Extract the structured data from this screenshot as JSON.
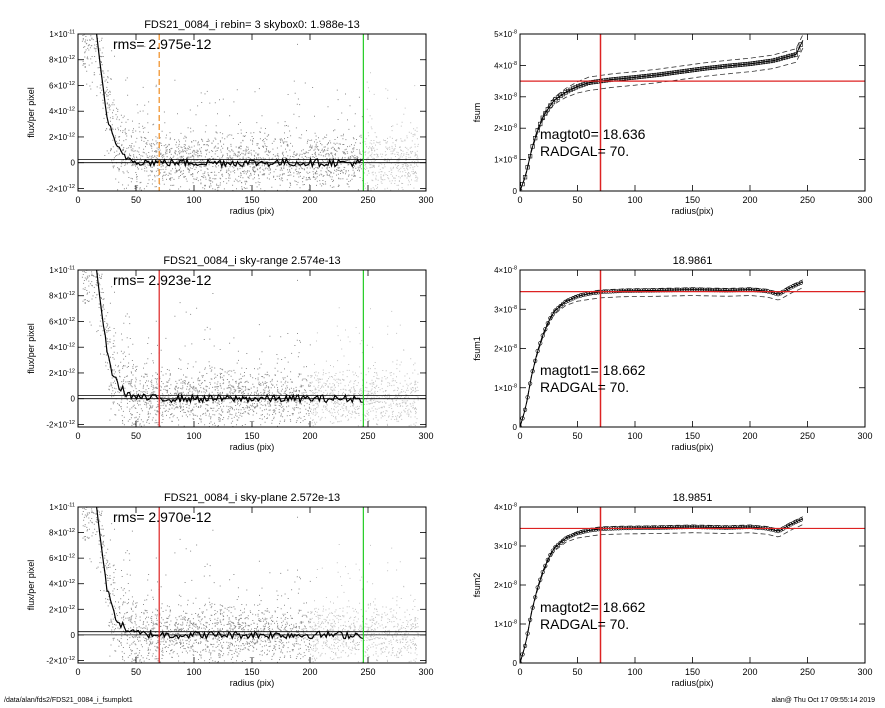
{
  "footer": {
    "left": "/data/alan/fds2/FDS21_0084_i_fsumplot1",
    "right": "alan@  Thu Oct 17 09:55:14 2019"
  },
  "colors": {
    "green": "#22cc22",
    "red": "#dd2222",
    "orange": "#f08c20",
    "scatter": "#8a8a8a",
    "scatter_light": "#c4c4c4"
  },
  "chart_data": [
    {
      "type": "scatter",
      "title": "FDS21_0084_i rebin= 3    skybox0:  1.988e-13",
      "xlabel": "radius (pix)",
      "ylabel": "flux/per pixel",
      "xlim": [
        0,
        300
      ],
      "ylim": [
        -2.2e-12,
        1e-11
      ],
      "xticks": [
        0,
        50,
        100,
        150,
        200,
        250,
        300
      ],
      "xtick_labels": [
        "0",
        "50",
        "100",
        "150",
        "200",
        "250",
        "300"
      ],
      "yticks": [
        1e-11,
        8e-12,
        6e-12,
        4e-12,
        2e-12,
        0,
        -2e-12
      ],
      "ytick_labels": [
        {
          "m": "1×10",
          "e": "-11"
        },
        {
          "m": "8×10",
          "e": "-12"
        },
        {
          "m": "6×10",
          "e": "-12"
        },
        {
          "m": "4×10",
          "e": "-12"
        },
        {
          "m": "2×10",
          "e": "-12"
        },
        {
          "m": "0",
          "e": ""
        },
        {
          "m": "-2×10",
          "e": "-12"
        }
      ],
      "annotation": "rms= 2.975e-12",
      "vlines": [
        {
          "x": 70,
          "color": "orange",
          "style": "dashed"
        },
        {
          "x": 246,
          "color": "green",
          "style": "solid"
        }
      ],
      "hlines": [
        0,
        2.5e-13
      ],
      "profile": [
        [
          16,
          1e-11
        ],
        [
          20,
          7e-12
        ],
        [
          25,
          3.6e-12
        ],
        [
          30,
          1.9e-12
        ],
        [
          35,
          1e-12
        ],
        [
          40,
          5.5e-13
        ],
        [
          45,
          2.5e-13
        ],
        [
          50,
          1.3e-13
        ],
        [
          60,
          4e-14
        ],
        [
          80,
          1e-14
        ],
        [
          120,
          0
        ],
        [
          200,
          0
        ],
        [
          246,
          0
        ]
      ],
      "grey_region": null
    },
    {
      "type": "line",
      "title": "",
      "xlabel": "radius(pix)",
      "ylabel": "fsum",
      "xlim": [
        0,
        300
      ],
      "ylim": [
        0,
        5e-08
      ],
      "xticks": [
        0,
        50,
        100,
        150,
        200,
        250,
        300
      ],
      "xtick_labels": [
        "0",
        "50",
        "100",
        "150",
        "200",
        "250",
        "300"
      ],
      "yticks": [
        5e-08,
        4e-08,
        3e-08,
        2e-08,
        1e-08,
        0
      ],
      "ytick_labels": [
        {
          "m": "5×10",
          "e": "-8"
        },
        {
          "m": "4×10",
          "e": "-8"
        },
        {
          "m": "3×10",
          "e": "-8"
        },
        {
          "m": "2×10",
          "e": "-8"
        },
        {
          "m": "1×10",
          "e": "-8"
        },
        {
          "m": "0",
          "e": ""
        }
      ],
      "annotation_lines": [
        "magtot0=  18.636",
        "RADGAL=      70."
      ],
      "vline": 70,
      "hline": 3.5e-08,
      "curve": [
        [
          0,
          0
        ],
        [
          5,
          5e-09
        ],
        [
          10,
          1.3e-08
        ],
        [
          15,
          1.9e-08
        ],
        [
          20,
          2.35e-08
        ],
        [
          25,
          2.65e-08
        ],
        [
          30,
          2.9e-08
        ],
        [
          40,
          3.15e-08
        ],
        [
          50,
          3.33e-08
        ],
        [
          60,
          3.45e-08
        ],
        [
          70,
          3.5e-08
        ],
        [
          80,
          3.55e-08
        ],
        [
          100,
          3.62e-08
        ],
        [
          120,
          3.7e-08
        ],
        [
          140,
          3.8e-08
        ],
        [
          160,
          3.9e-08
        ],
        [
          180,
          3.98e-08
        ],
        [
          200,
          4.05e-08
        ],
        [
          220,
          4.15e-08
        ],
        [
          240,
          4.35e-08
        ],
        [
          246,
          4.8e-08
        ]
      ],
      "curve_lower_offset": -2.5e-09,
      "curve_upper_offset": 1.8e-09,
      "marker": "square"
    },
    {
      "type": "scatter",
      "title": "FDS21_0084_i sky-range  2.574e-13",
      "xlabel": "radius (pix)",
      "ylabel": "flux/per pixel",
      "xlim": [
        0,
        300
      ],
      "ylim": [
        -2.2e-12,
        1e-11
      ],
      "xticks": [
        0,
        50,
        100,
        150,
        200,
        250,
        300
      ],
      "xtick_labels": [
        "0",
        "50",
        "100",
        "150",
        "200",
        "250",
        "300"
      ],
      "yticks": [
        1e-11,
        8e-12,
        6e-12,
        4e-12,
        2e-12,
        0,
        -2e-12
      ],
      "ytick_labels": [
        {
          "m": "1×10",
          "e": "-11"
        },
        {
          "m": "8×10",
          "e": "-12"
        },
        {
          "m": "6×10",
          "e": "-12"
        },
        {
          "m": "4×10",
          "e": "-12"
        },
        {
          "m": "2×10",
          "e": "-12"
        },
        {
          "m": "0",
          "e": ""
        },
        {
          "m": "-2×10",
          "e": "-12"
        }
      ],
      "annotation": "rms= 2.923e-12",
      "vlines": [
        {
          "x": 70,
          "color": "red",
          "style": "solid"
        },
        {
          "x": 246,
          "color": "green",
          "style": "solid"
        }
      ],
      "hlines": [
        0,
        2.5e-13
      ],
      "profile": [
        [
          16,
          1e-11
        ],
        [
          20,
          7e-12
        ],
        [
          25,
          3.6e-12
        ],
        [
          30,
          1.9e-12
        ],
        [
          35,
          1e-12
        ],
        [
          40,
          5.5e-13
        ],
        [
          45,
          2.5e-13
        ],
        [
          50,
          1.3e-13
        ],
        [
          60,
          4e-14
        ],
        [
          80,
          1e-14
        ],
        [
          120,
          0
        ],
        [
          200,
          0
        ],
        [
          246,
          0
        ]
      ],
      "grey_region": [
        200,
        246
      ]
    },
    {
      "type": "line",
      "title": "18.9861",
      "xlabel": "radius(pix)",
      "ylabel": "fsum1",
      "xlim": [
        0,
        300
      ],
      "ylim": [
        0,
        4e-08
      ],
      "xticks": [
        0,
        50,
        100,
        150,
        200,
        250,
        300
      ],
      "xtick_labels": [
        "0",
        "50",
        "100",
        "150",
        "200",
        "250",
        "300"
      ],
      "yticks": [
        4e-08,
        3e-08,
        2e-08,
        1e-08,
        0
      ],
      "ytick_labels": [
        {
          "m": "4×10",
          "e": "-8"
        },
        {
          "m": "3×10",
          "e": "-8"
        },
        {
          "m": "2×10",
          "e": "-8"
        },
        {
          "m": "1×10",
          "e": "-8"
        },
        {
          "m": "0",
          "e": ""
        }
      ],
      "annotation_lines": [
        "magtot1=  18.662",
        "RADGAL=      70."
      ],
      "vline": 70,
      "hline": 3.45e-08,
      "curve": [
        [
          0,
          0
        ],
        [
          5,
          5e-09
        ],
        [
          10,
          1.3e-08
        ],
        [
          15,
          1.9e-08
        ],
        [
          20,
          2.35e-08
        ],
        [
          25,
          2.7e-08
        ],
        [
          30,
          2.95e-08
        ],
        [
          40,
          3.2e-08
        ],
        [
          50,
          3.33e-08
        ],
        [
          60,
          3.4e-08
        ],
        [
          70,
          3.44e-08
        ],
        [
          90,
          3.47e-08
        ],
        [
          120,
          3.48e-08
        ],
        [
          150,
          3.5e-08
        ],
        [
          180,
          3.48e-08
        ],
        [
          200,
          3.5e-08
        ],
        [
          215,
          3.46e-08
        ],
        [
          225,
          3.38e-08
        ],
        [
          235,
          3.55e-08
        ],
        [
          246,
          3.7e-08
        ]
      ],
      "curve_lower_offset": -1.5e-09,
      "curve_upper_offset": 5e-10,
      "marker": "circle"
    },
    {
      "type": "scatter",
      "title": "FDS21_0084_i sky-plane  2.572e-13",
      "xlabel": "radius (pix)",
      "ylabel": "flux/per pixel",
      "xlim": [
        0,
        300
      ],
      "ylim": [
        -2.2e-12,
        1e-11
      ],
      "xticks": [
        0,
        50,
        100,
        150,
        200,
        250,
        300
      ],
      "xtick_labels": [
        "0",
        "50",
        "100",
        "150",
        "200",
        "250",
        "300"
      ],
      "yticks": [
        1e-11,
        8e-12,
        6e-12,
        4e-12,
        2e-12,
        0,
        -2e-12
      ],
      "ytick_labels": [
        {
          "m": "1×10",
          "e": "-11"
        },
        {
          "m": "8×10",
          "e": "-12"
        },
        {
          "m": "6×10",
          "e": "-12"
        },
        {
          "m": "4×10",
          "e": "-12"
        },
        {
          "m": "2×10",
          "e": "-12"
        },
        {
          "m": "0",
          "e": ""
        },
        {
          "m": "-2×10",
          "e": "-12"
        }
      ],
      "annotation": "rms= 2.970e-12",
      "vlines": [
        {
          "x": 70,
          "color": "red",
          "style": "solid"
        },
        {
          "x": 246,
          "color": "green",
          "style": "solid"
        }
      ],
      "hlines": [
        0,
        2.5e-13
      ],
      "profile": [
        [
          16,
          1e-11
        ],
        [
          20,
          7e-12
        ],
        [
          25,
          3.6e-12
        ],
        [
          30,
          1.9e-12
        ],
        [
          35,
          1e-12
        ],
        [
          40,
          5.5e-13
        ],
        [
          45,
          2.5e-13
        ],
        [
          50,
          1.3e-13
        ],
        [
          60,
          4e-14
        ],
        [
          80,
          1e-14
        ],
        [
          120,
          0
        ],
        [
          200,
          0
        ],
        [
          246,
          0
        ]
      ],
      "grey_region": [
        200,
        246
      ]
    },
    {
      "type": "line",
      "title": "18.9851",
      "xlabel": "radius(pix)",
      "ylabel": "fsum2",
      "xlim": [
        0,
        300
      ],
      "ylim": [
        0,
        4e-08
      ],
      "xticks": [
        0,
        50,
        100,
        150,
        200,
        250,
        300
      ],
      "xtick_labels": [
        "0",
        "50",
        "100",
        "150",
        "200",
        "250",
        "300"
      ],
      "yticks": [
        4e-08,
        3e-08,
        2e-08,
        1e-08,
        0
      ],
      "ytick_labels": [
        {
          "m": "4×10",
          "e": "-8"
        },
        {
          "m": "3×10",
          "e": "-8"
        },
        {
          "m": "2×10",
          "e": "-8"
        },
        {
          "m": "1×10",
          "e": "-8"
        },
        {
          "m": "0",
          "e": ""
        }
      ],
      "annotation_lines": [
        "magtot2=  18.662",
        "RADGAL=      70."
      ],
      "vline": 70,
      "hline": 3.45e-08,
      "curve": [
        [
          0,
          0
        ],
        [
          5,
          5e-09
        ],
        [
          10,
          1.3e-08
        ],
        [
          15,
          1.9e-08
        ],
        [
          20,
          2.35e-08
        ],
        [
          25,
          2.7e-08
        ],
        [
          30,
          2.95e-08
        ],
        [
          40,
          3.2e-08
        ],
        [
          50,
          3.33e-08
        ],
        [
          60,
          3.4e-08
        ],
        [
          70,
          3.44e-08
        ],
        [
          90,
          3.46e-08
        ],
        [
          120,
          3.47e-08
        ],
        [
          150,
          3.49e-08
        ],
        [
          180,
          3.47e-08
        ],
        [
          200,
          3.49e-08
        ],
        [
          215,
          3.45e-08
        ],
        [
          225,
          3.38e-08
        ],
        [
          235,
          3.55e-08
        ],
        [
          246,
          3.7e-08
        ]
      ],
      "curve_lower_offset": -1.5e-09,
      "curve_upper_offset": 5e-10,
      "marker": "circle"
    }
  ]
}
